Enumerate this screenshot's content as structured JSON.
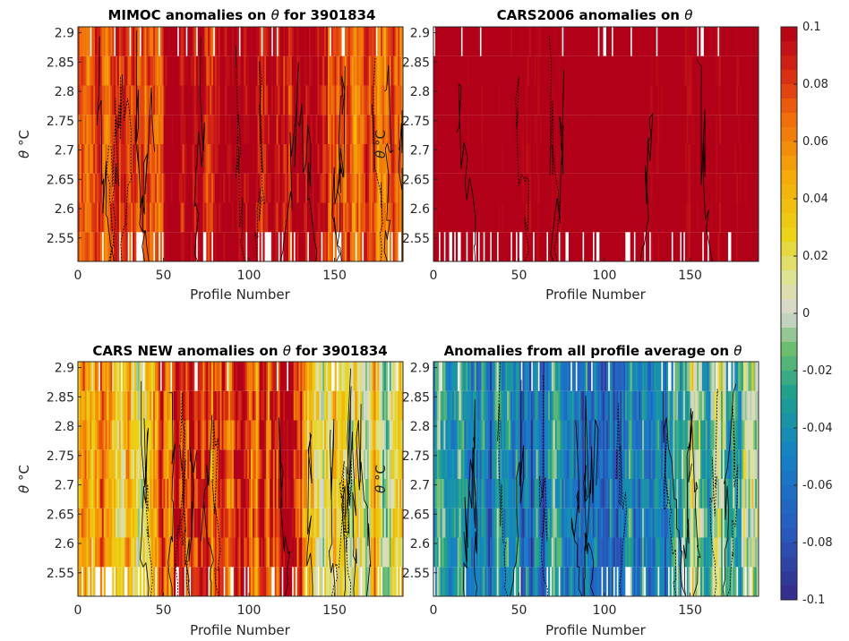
{
  "chart_data": [
    {
      "type": "heatmap",
      "title_main": "MIMOC anomalies on ",
      "title_theta": "θ",
      "title_tail": "  for 3901834",
      "xlabel": "Profile Number",
      "ylabel_theta": "θ",
      "ylabel_unit": " °C",
      "xlim": [
        0,
        190
      ],
      "ylim": [
        2.51,
        2.91
      ],
      "xticks": [
        "0",
        "50",
        "100",
        "150"
      ],
      "yticks": [
        "2.55",
        "2.6",
        "2.65",
        "2.7",
        "2.75",
        "2.8",
        "2.85",
        "2.9"
      ],
      "mean_anomaly": 0.08,
      "variability": 0.025,
      "warm_profile_range": [
        50,
        145
      ],
      "contours": "yes"
    },
    {
      "type": "heatmap",
      "title_main": "CARS2006 anomalies on ",
      "title_theta": "θ",
      "title_tail": "",
      "xlabel": "Profile Number",
      "ylabel_theta": "θ",
      "ylabel_unit": " °C",
      "xlim": [
        0,
        190
      ],
      "ylim": [
        2.51,
        2.91
      ],
      "xticks": [
        "0",
        "50",
        "100",
        "150"
      ],
      "yticks": [
        "2.55",
        "2.6",
        "2.65",
        "2.7",
        "2.75",
        "2.8",
        "2.85",
        "2.9"
      ],
      "mean_anomaly": 0.1,
      "variability": 0.01,
      "warm_profile_range": [
        0,
        190
      ],
      "contours": "sparse"
    },
    {
      "type": "heatmap",
      "title_main": "CARS NEW anomalies on ",
      "title_theta": "θ",
      "title_tail": " for 3901834",
      "xlabel": "Profile Number",
      "ylabel_theta": "θ",
      "ylabel_unit": " °C",
      "xlim": [
        0,
        190
      ],
      "ylim": [
        2.51,
        2.91
      ],
      "xticks": [
        "0",
        "50",
        "100",
        "150"
      ],
      "yticks": [
        "2.55",
        "2.6",
        "2.65",
        "2.7",
        "2.75",
        "2.8",
        "2.85",
        "2.9"
      ],
      "mean_anomaly": 0.05,
      "variability": 0.04,
      "warm_profile_range": [
        40,
        130
      ],
      "contours": "yes"
    },
    {
      "type": "heatmap",
      "title_main": "Anomalies from all profile average on ",
      "title_theta": "θ",
      "title_tail": "",
      "xlabel": "Profile Number",
      "ylabel_theta": "θ",
      "ylabel_unit": " °C",
      "xlim": [
        0,
        190
      ],
      "ylim": [
        2.51,
        2.91
      ],
      "xticks": [
        "0",
        "50",
        "100",
        "150"
      ],
      "yticks": [
        "2.55",
        "2.6",
        "2.65",
        "2.7",
        "2.75",
        "2.8",
        "2.85",
        "2.9"
      ],
      "mean_anomaly": -0.03,
      "variability": 0.04,
      "warm_profile_range": [
        145,
        190
      ],
      "contours": "yes"
    }
  ],
  "colorbar": {
    "range": [
      -0.1,
      0.1
    ],
    "ticks": [
      "0.1",
      "0.08",
      "0.06",
      "0.04",
      "0.02",
      "0",
      "-0.02",
      "-0.04",
      "-0.06",
      "-0.08",
      "-0.1"
    ],
    "colormap": "parula-to-red (blue, green, light grey, yellow, orange, red)",
    "steps": 40
  },
  "colors": {
    "missing": "#ffffff",
    "contour": "#000000",
    "axis": "#262626"
  }
}
